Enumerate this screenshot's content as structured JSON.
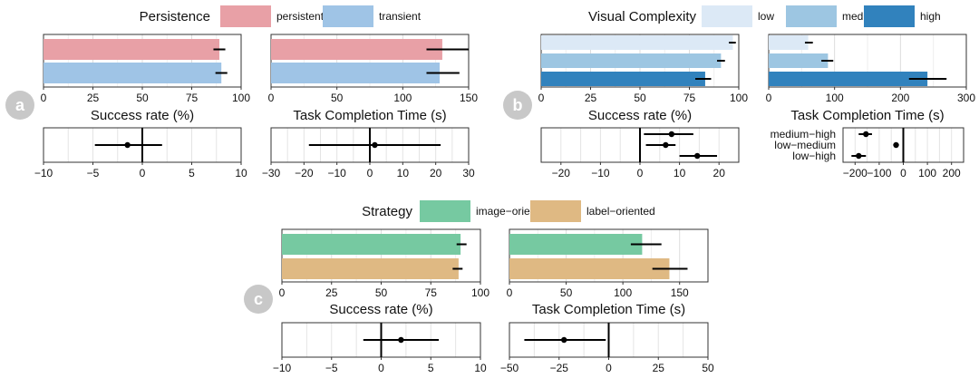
{
  "colors": {
    "persistent": "#e8a0a6",
    "transient": "#9fc4e6",
    "low": "#dce9f6",
    "medium": "#9dc6e2",
    "high": "#3182bd",
    "image_oriented": "#76c9a1",
    "label_oriented": "#dfb983",
    "grid": "#dddddd",
    "badge": "#c8c8c8",
    "error": "#000000"
  },
  "chart_data": [
    {
      "id": "a",
      "badge": "a",
      "legend": {
        "title": "Persistence",
        "items": [
          {
            "label": "persistent",
            "color_key": "persistent"
          },
          {
            "label": "transient",
            "color_key": "transient"
          }
        ]
      },
      "panels": [
        {
          "type": "bar",
          "orientation": "horizontal",
          "xlabel": "Success rate (%)",
          "xlim": [
            0,
            100
          ],
          "ticks": [
            0,
            25,
            50,
            75,
            100
          ],
          "bars": [
            {
              "series": "persistent",
              "color_key": "persistent",
              "value": 89,
              "ci": [
                86,
                92
              ]
            },
            {
              "series": "transient",
              "color_key": "transient",
              "value": 90,
              "ci": [
                87,
                93
              ]
            }
          ],
          "diff": {
            "xlim": [
              -10,
              10
            ],
            "ticks": [
              -10,
              -5,
              0,
              5,
              10
            ],
            "rows": [
              {
                "label": "",
                "value": -1.5,
                "ci": [
                  -4.8,
                  2.0
                ]
              }
            ]
          }
        },
        {
          "type": "bar",
          "orientation": "horizontal",
          "xlabel": "Task Completion Time (s)",
          "xlim": [
            0,
            150
          ],
          "ticks": [
            0,
            50,
            100,
            150
          ],
          "bars": [
            {
              "series": "persistent",
              "color_key": "persistent",
              "value": 130,
              "ci": [
                118,
                150
              ]
            },
            {
              "series": "transient",
              "color_key": "transient",
              "value": 128,
              "ci": [
                118,
                143
              ]
            }
          ],
          "diff": {
            "xlim": [
              -30,
              30
            ],
            "ticks": [
              -30,
              -20,
              -10,
              0,
              10,
              20,
              30
            ],
            "rows": [
              {
                "label": "",
                "value": 1.5,
                "ci": [
                  -18.5,
                  21.5
                ]
              }
            ]
          }
        }
      ]
    },
    {
      "id": "b",
      "badge": "b",
      "legend": {
        "title": "Visual Complexity",
        "items": [
          {
            "label": "low",
            "color_key": "low"
          },
          {
            "label": "medium",
            "color_key": "medium"
          },
          {
            "label": "high",
            "color_key": "high"
          }
        ]
      },
      "panels": [
        {
          "type": "bar",
          "orientation": "horizontal",
          "xlabel": "Success rate (%)",
          "xlim": [
            0,
            100
          ],
          "ticks": [
            0,
            25,
            50,
            75,
            100
          ],
          "bars": [
            {
              "series": "low",
              "color_key": "low",
              "value": 97,
              "ci": [
                95,
                98.5
              ]
            },
            {
              "series": "medium",
              "color_key": "medium",
              "value": 91,
              "ci": [
                89,
                93
              ]
            },
            {
              "series": "high",
              "color_key": "high",
              "value": 83,
              "ci": [
                78,
                86
              ]
            }
          ],
          "diff": {
            "xlim": [
              -25,
              25
            ],
            "ticks": [
              -20,
              -10,
              0,
              10,
              20
            ],
            "rows": [
              {
                "label": "",
                "value": 8,
                "ci": [
                  1,
                  13.5
                ]
              },
              {
                "label": "",
                "value": 6.5,
                "ci": [
                  1.5,
                  9
                ]
              },
              {
                "label": "",
                "value": 14.5,
                "ci": [
                  10,
                  19.5
                ]
              }
            ]
          }
        },
        {
          "type": "bar",
          "orientation": "horizontal",
          "xlabel": "Task Completion Time (s)",
          "xlim": [
            0,
            300
          ],
          "ticks": [
            0,
            100,
            200,
            300
          ],
          "bars": [
            {
              "series": "low",
              "color_key": "low",
              "value": 60,
              "ci": [
                55,
                67
              ]
            },
            {
              "series": "medium",
              "color_key": "medium",
              "value": 90,
              "ci": [
                80,
                98
              ]
            },
            {
              "series": "high",
              "color_key": "high",
              "value": 241,
              "ci": [
                213,
                270
              ]
            }
          ],
          "diff": {
            "xlim": [
              -250,
              250
            ],
            "ticks": [
              -200,
              -100,
              0,
              100,
              200
            ],
            "tick_labels": [
              "−200",
              "−100",
              "0",
              "100",
              "200"
            ],
            "rows": [
              {
                "label": "medium−high",
                "value": -155,
                "ci": [
                  -185,
                  -130
                ]
              },
              {
                "label": "low−medium",
                "value": -30,
                "ci": [
                  -40,
                  -22
                ]
              },
              {
                "label": "low−high",
                "value": -185,
                "ci": [
                  -215,
                  -155
                ]
              }
            ]
          }
        }
      ]
    },
    {
      "id": "c",
      "badge": "c",
      "legend": {
        "title": "Strategy",
        "items": [
          {
            "label": "image−oriented",
            "color_key": "image_oriented"
          },
          {
            "label": "label−oriented",
            "color_key": "label_oriented"
          }
        ]
      },
      "panels": [
        {
          "type": "bar",
          "orientation": "horizontal",
          "xlabel": "Success rate (%)",
          "xlim": [
            0,
            100
          ],
          "ticks": [
            0,
            25,
            50,
            75,
            100
          ],
          "bars": [
            {
              "series": "image-oriented",
              "color_key": "image_oriented",
              "value": 90,
              "ci": [
                88,
                93
              ]
            },
            {
              "series": "label-oriented",
              "color_key": "label_oriented",
              "value": 89,
              "ci": [
                86,
                91
              ]
            }
          ],
          "diff": {
            "xlim": [
              -10,
              10
            ],
            "ticks": [
              -10,
              -5,
              0,
              5,
              10
            ],
            "rows": [
              {
                "label": "",
                "value": 2,
                "ci": [
                  -1.8,
                  5.8
                ]
              }
            ]
          }
        },
        {
          "type": "bar",
          "orientation": "horizontal",
          "xlabel": "Task Completion Time (s)",
          "xlim": [
            0,
            175
          ],
          "ticks": [
            0,
            50,
            100,
            150
          ],
          "bars": [
            {
              "series": "image-oriented",
              "color_key": "image_oriented",
              "value": 117,
              "ci": [
                107,
                134
              ]
            },
            {
              "series": "label-oriented",
              "color_key": "label_oriented",
              "value": 141,
              "ci": [
                126,
                157
              ]
            }
          ],
          "diff": {
            "xlim": [
              -50,
              50
            ],
            "ticks": [
              -50,
              -25,
              0,
              25,
              50
            ],
            "rows": [
              {
                "label": "",
                "value": -22.5,
                "ci": [
                  -42.5,
                  -1.5
                ]
              }
            ]
          }
        }
      ]
    }
  ]
}
